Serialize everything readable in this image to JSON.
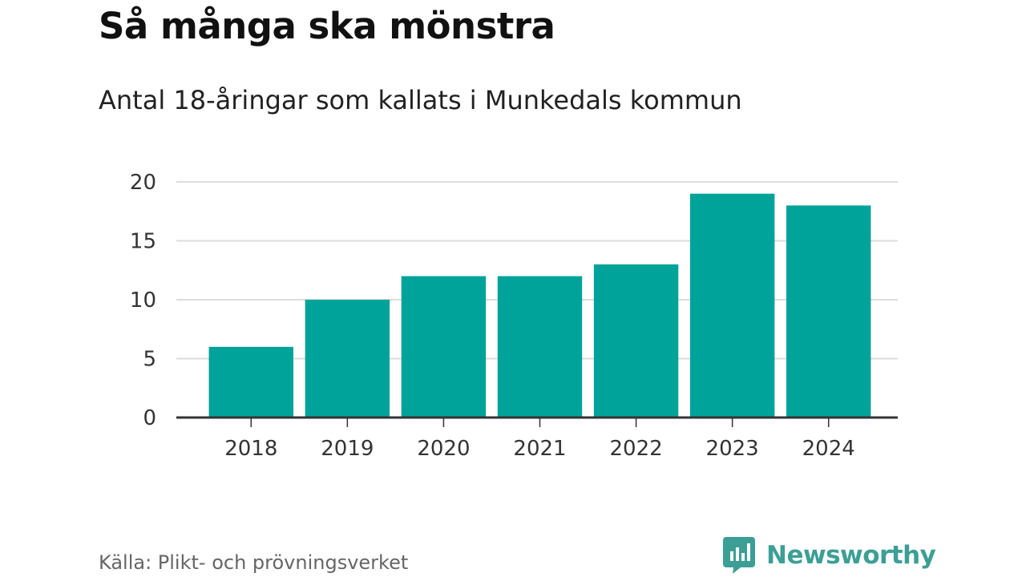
{
  "header": {
    "title": "Så många ska mönstra",
    "subtitle": "Antal 18-åringar som kallats i Munkedals kommun"
  },
  "chart_data": {
    "type": "bar",
    "title": "Så många ska mönstra",
    "subtitle": "Antal 18-åringar som kallats i Munkedals kommun",
    "categories": [
      "2018",
      "2019",
      "2020",
      "2021",
      "2022",
      "2023",
      "2024"
    ],
    "values": [
      6,
      10,
      12,
      12,
      13,
      19,
      18
    ],
    "yticks": [
      "0",
      "5",
      "10",
      "15",
      "20"
    ],
    "ylim": [
      0,
      20
    ],
    "xlabel": "",
    "ylabel": "",
    "grid": true,
    "colors": {
      "bar": "#00a39a",
      "grid": "#dcdcdc",
      "axis": "#333333"
    }
  },
  "footer": {
    "source": "Källa: Plikt- och prövningsverket",
    "brand": "Newsworthy",
    "brand_icon": "bar-chart-speech-bubble-icon",
    "brand_color": "#3c9f95"
  }
}
